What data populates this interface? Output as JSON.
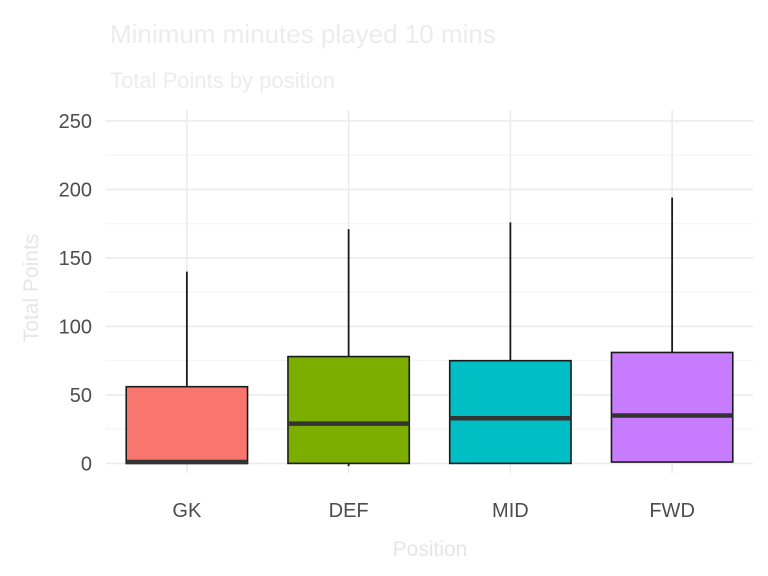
{
  "chart_data": {
    "type": "box",
    "title": "Minimum minutes played 10 mins",
    "subtitle": "Total Points by position",
    "xlabel": "Position",
    "ylabel": "Total Points",
    "categories": [
      "GK",
      "DEF",
      "MID",
      "FWD"
    ],
    "ylim": [
      -7,
      258
    ],
    "y_ticks": [
      0,
      50,
      100,
      150,
      200,
      250
    ],
    "grid": true,
    "legend": "none",
    "boxes": [
      {
        "category": "GK",
        "min": 0,
        "q1": 0,
        "median": 1,
        "q3": 56,
        "max": 140,
        "color": "#F8766D"
      },
      {
        "category": "DEF",
        "min": -2,
        "q1": 0,
        "median": 29,
        "q3": 78,
        "max": 171,
        "color": "#7CAE00"
      },
      {
        "category": "MID",
        "min": 0,
        "q1": 0,
        "median": 33,
        "q3": 75,
        "max": 176,
        "color": "#00BFC4"
      },
      {
        "category": "FWD",
        "min": 1,
        "q1": 1,
        "median": 35,
        "q3": 81,
        "max": 194,
        "color": "#C77CFF"
      }
    ]
  }
}
